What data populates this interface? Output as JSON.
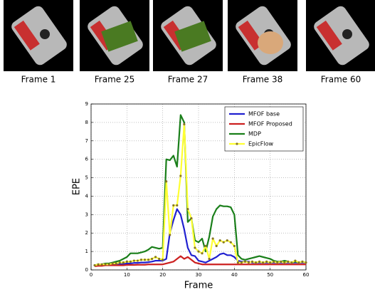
{
  "frames": [
    {
      "caption": "Frame 1"
    },
    {
      "caption": "Frame 25"
    },
    {
      "caption": "Frame 27"
    },
    {
      "caption": "Frame 38"
    },
    {
      "caption": "Frame 60"
    }
  ],
  "chart_data": {
    "type": "line",
    "xlabel": "Frame",
    "ylabel": "EPE",
    "x": [
      1,
      2,
      3,
      4,
      5,
      6,
      7,
      8,
      9,
      10,
      11,
      12,
      13,
      14,
      15,
      16,
      17,
      18,
      19,
      20,
      21,
      22,
      23,
      24,
      25,
      26,
      27,
      28,
      29,
      30,
      31,
      32,
      33,
      34,
      35,
      36,
      37,
      38,
      39,
      40,
      41,
      42,
      43,
      44,
      45,
      46,
      47,
      48,
      49,
      50,
      51,
      52,
      53,
      54,
      55,
      56,
      57,
      58,
      59,
      60
    ],
    "series": [
      {
        "name": "MFOF base",
        "color": "#2020d0",
        "values": [
          0.25,
          0.25,
          0.25,
          0.28,
          0.3,
          0.3,
          0.3,
          0.32,
          0.32,
          0.35,
          0.35,
          0.38,
          0.38,
          0.4,
          0.4,
          0.42,
          0.45,
          0.5,
          0.5,
          0.5,
          0.6,
          2.0,
          2.7,
          3.3,
          3.0,
          2.2,
          1.2,
          0.8,
          0.75,
          0.5,
          0.45,
          0.4,
          0.5,
          0.6,
          0.7,
          0.85,
          0.9,
          0.8,
          0.8,
          0.7,
          0.5,
          0.45,
          0.45,
          0.45,
          0.4,
          0.4,
          0.4,
          0.4,
          0.4,
          0.4,
          0.4,
          0.4,
          0.4,
          0.4,
          0.4,
          0.4,
          0.4,
          0.4,
          0.4,
          0.4
        ]
      },
      {
        "name": "MFOF Proposed",
        "color": "#cc2020",
        "values": [
          0.2,
          0.22,
          0.22,
          0.25,
          0.25,
          0.25,
          0.25,
          0.25,
          0.25,
          0.27,
          0.27,
          0.27,
          0.28,
          0.28,
          0.28,
          0.3,
          0.3,
          0.3,
          0.3,
          0.3,
          0.35,
          0.4,
          0.45,
          0.6,
          0.75,
          0.6,
          0.7,
          0.55,
          0.4,
          0.35,
          0.3,
          0.3,
          0.3,
          0.3,
          0.3,
          0.3,
          0.3,
          0.3,
          0.3,
          0.3,
          0.3,
          0.3,
          0.3,
          0.3,
          0.3,
          0.3,
          0.3,
          0.3,
          0.3,
          0.3,
          0.3,
          0.3,
          0.3,
          0.3,
          0.3,
          0.3,
          0.3,
          0.3,
          0.3,
          0.3
        ]
      },
      {
        "name": "MDP",
        "color": "#1a7f1a",
        "values": [
          0.25,
          0.3,
          0.3,
          0.35,
          0.35,
          0.4,
          0.45,
          0.5,
          0.6,
          0.7,
          0.9,
          0.9,
          0.9,
          0.95,
          1.0,
          1.1,
          1.25,
          1.2,
          1.15,
          1.2,
          6.0,
          5.95,
          6.2,
          5.6,
          8.4,
          8.0,
          2.6,
          2.8,
          1.6,
          1.5,
          1.7,
          1.0,
          1.8,
          2.9,
          3.3,
          3.5,
          3.45,
          3.45,
          3.4,
          3.0,
          0.8,
          0.6,
          0.55,
          0.6,
          0.65,
          0.7,
          0.75,
          0.7,
          0.65,
          0.6,
          0.5,
          0.45,
          0.45,
          0.5,
          0.45,
          0.4,
          0.45,
          0.4,
          0.45,
          0.4
        ]
      },
      {
        "name": "EpicFlow",
        "color": "#ffff33",
        "marker": "o",
        "values": [
          0.25,
          0.3,
          0.3,
          0.3,
          0.3,
          0.35,
          0.35,
          0.4,
          0.4,
          0.45,
          0.45,
          0.5,
          0.5,
          0.55,
          0.55,
          0.55,
          0.6,
          0.7,
          0.6,
          0.55,
          4.8,
          1.9,
          3.5,
          3.5,
          5.1,
          7.9,
          3.3,
          2.8,
          1.2,
          1.0,
          0.9,
          1.3,
          0.6,
          1.7,
          1.3,
          1.6,
          1.5,
          1.6,
          1.5,
          1.3,
          0.4,
          0.4,
          0.45,
          0.4,
          0.45,
          0.4,
          0.45,
          0.4,
          0.45,
          0.4,
          0.45,
          0.4,
          0.45,
          0.4,
          0.45,
          0.4,
          0.5,
          0.4,
          0.45,
          0.4
        ]
      }
    ],
    "xlim": [
      0,
      60
    ],
    "xticks": [
      0,
      10,
      20,
      30,
      40,
      50,
      60
    ],
    "ylim": [
      0,
      9
    ],
    "yticks": [
      0,
      1,
      2,
      3,
      4,
      5,
      6,
      7,
      8,
      9
    ],
    "grid": true,
    "legend": "upper right"
  }
}
